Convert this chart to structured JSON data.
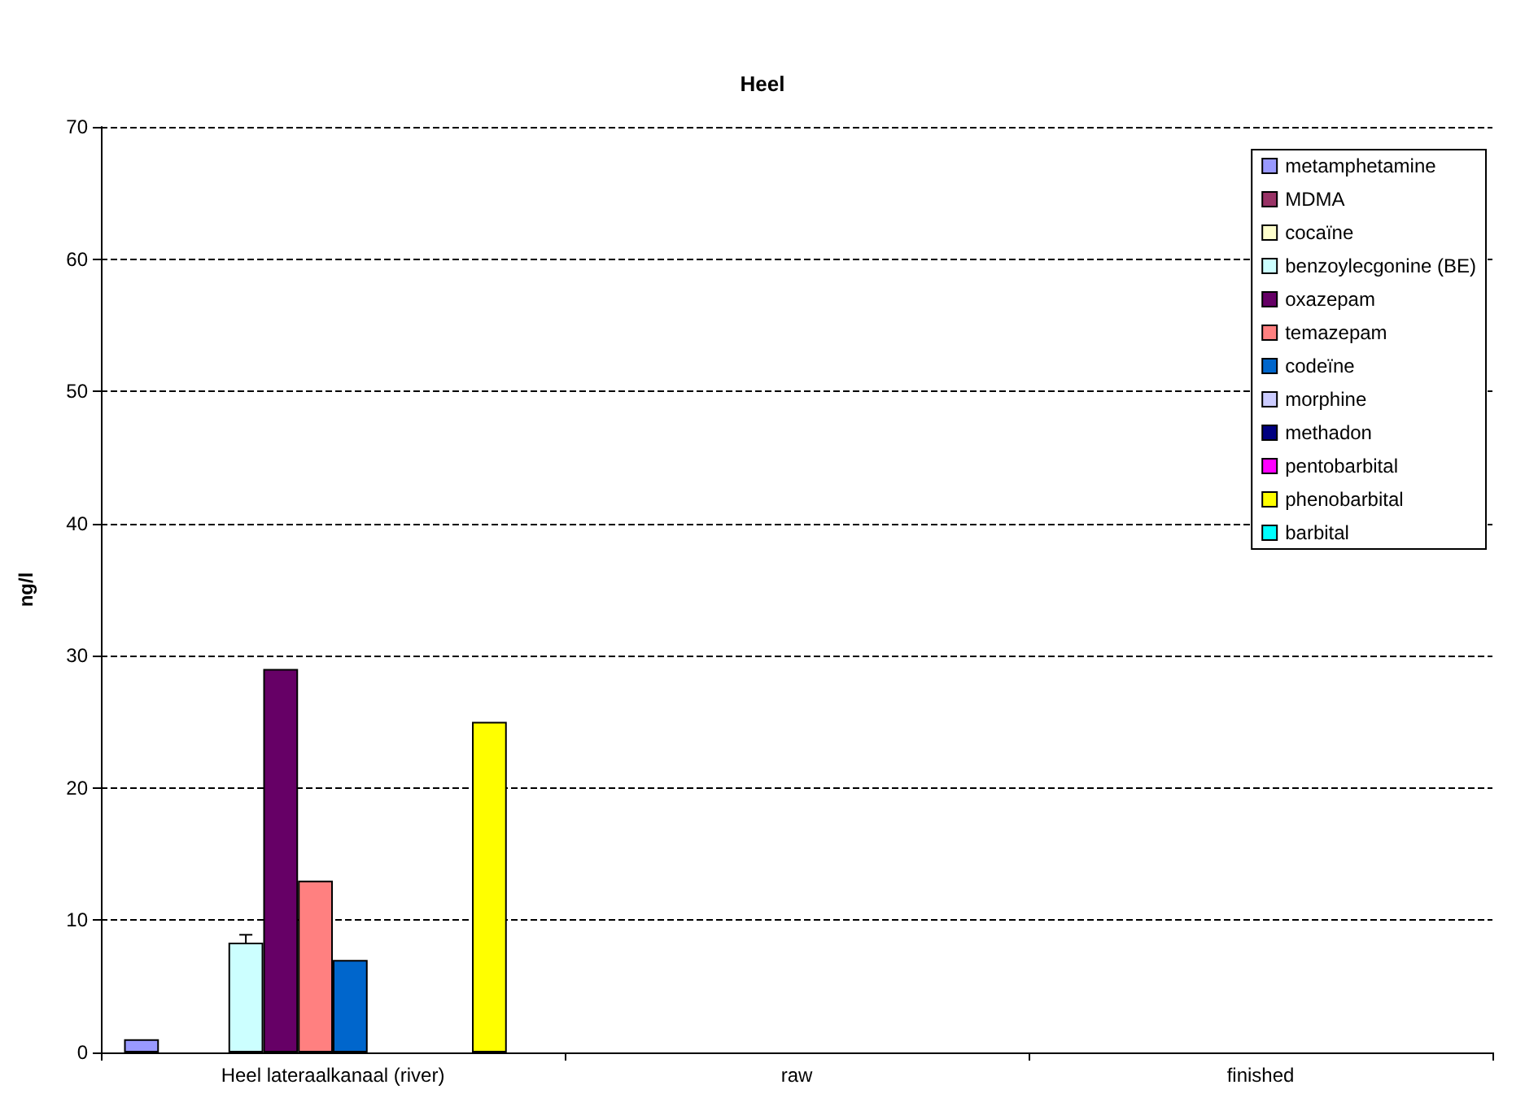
{
  "chart_data": {
    "type": "bar",
    "title": "Heel",
    "ylabel": "ng/l",
    "categories": [
      "Heel lateraalkanaal (river)",
      "raw",
      "finished"
    ],
    "series": [
      {
        "name": "metamphetamine",
        "color": "#9999ff",
        "values": [
          1,
          null,
          null
        ]
      },
      {
        "name": "MDMA",
        "color": "#993366",
        "values": [
          null,
          null,
          null
        ]
      },
      {
        "name": "cocaïne",
        "color": "#ffffcc",
        "values": [
          null,
          null,
          null
        ]
      },
      {
        "name": "benzoylecgonine (BE)",
        "color": "#ccffff",
        "values": [
          8.3,
          null,
          null
        ],
        "errors": [
          0.6,
          null,
          null
        ]
      },
      {
        "name": "oxazepam",
        "color": "#660066",
        "values": [
          29,
          null,
          null
        ]
      },
      {
        "name": "temazepam",
        "color": "#ff8080",
        "values": [
          13,
          null,
          null
        ]
      },
      {
        "name": "codeïne",
        "color": "#0066cc",
        "values": [
          7,
          null,
          null
        ]
      },
      {
        "name": "morphine",
        "color": "#ccccff",
        "values": [
          null,
          null,
          null
        ]
      },
      {
        "name": "methadon",
        "color": "#000080",
        "values": [
          null,
          null,
          null
        ]
      },
      {
        "name": "pentobarbital",
        "color": "#ff00ff",
        "values": [
          null,
          null,
          null
        ]
      },
      {
        "name": "phenobarbital",
        "color": "#ffff00",
        "values": [
          25,
          null,
          null
        ]
      },
      {
        "name": "barbital",
        "color": "#00ffff",
        "values": [
          null,
          null,
          null
        ]
      }
    ],
    "ylim": [
      0,
      70
    ],
    "yticks": [
      0,
      10,
      20,
      30,
      40,
      50,
      60,
      70
    ],
    "grid": "y",
    "line_style": "dashed",
    "legend": "top right"
  }
}
